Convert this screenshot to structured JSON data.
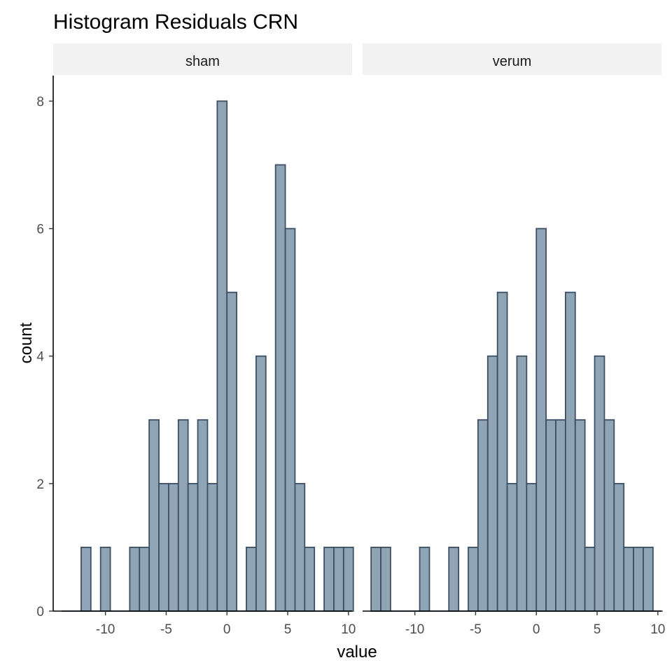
{
  "chart_data": {
    "type": "bar",
    "title": "Histogram Residuals CRN",
    "xlabel": "value",
    "ylabel": "count",
    "xlim": [
      -14.3,
      10.3
    ],
    "ylim": [
      0,
      8.4
    ],
    "xticks": [
      -10,
      -5,
      0,
      5,
      10
    ],
    "yticks": [
      0,
      2,
      4,
      6,
      8
    ],
    "grid": false,
    "legend": "none",
    "bin_width": 0.8,
    "colors": {
      "fill": "#8fa5b5",
      "outline": "#3d4f63",
      "strip": "#f2f2f2"
    },
    "panels": [
      {
        "name": "sham",
        "bin_centers": [
          -13.2,
          -12.4,
          -11.6,
          -10.8,
          -10.0,
          -9.2,
          -8.4,
          -7.6,
          -6.8,
          -6.0,
          -5.2,
          -4.4,
          -3.6,
          -2.8,
          -2.0,
          -1.2,
          -0.4,
          0.4,
          1.2,
          2.0,
          2.8,
          3.6,
          4.4,
          5.2,
          6.0,
          6.8,
          7.6,
          8.4,
          9.2,
          10.0
        ],
        "counts": [
          0,
          0,
          1,
          0,
          1,
          0,
          0,
          1,
          1,
          3,
          2,
          2,
          3,
          2,
          3,
          2,
          8,
          5,
          0,
          1,
          4,
          0,
          7,
          6,
          2,
          1,
          0,
          1,
          1,
          1
        ]
      },
      {
        "name": "verum",
        "bin_centers": [
          -13.2,
          -12.4,
          -11.6,
          -10.8,
          -10.0,
          -9.2,
          -8.4,
          -7.6,
          -6.8,
          -6.0,
          -5.2,
          -4.4,
          -3.6,
          -2.8,
          -2.0,
          -1.2,
          -0.4,
          0.4,
          1.2,
          2.0,
          2.8,
          3.6,
          4.4,
          5.2,
          6.0,
          6.8,
          7.6,
          8.4,
          9.2,
          10.0
        ],
        "counts": [
          1,
          1,
          0,
          0,
          0,
          1,
          0,
          0,
          1,
          0,
          1,
          3,
          4,
          5,
          2,
          4,
          2,
          6,
          3,
          3,
          5,
          3,
          1,
          4,
          3,
          2,
          1,
          1,
          1,
          0
        ]
      }
    ]
  }
}
